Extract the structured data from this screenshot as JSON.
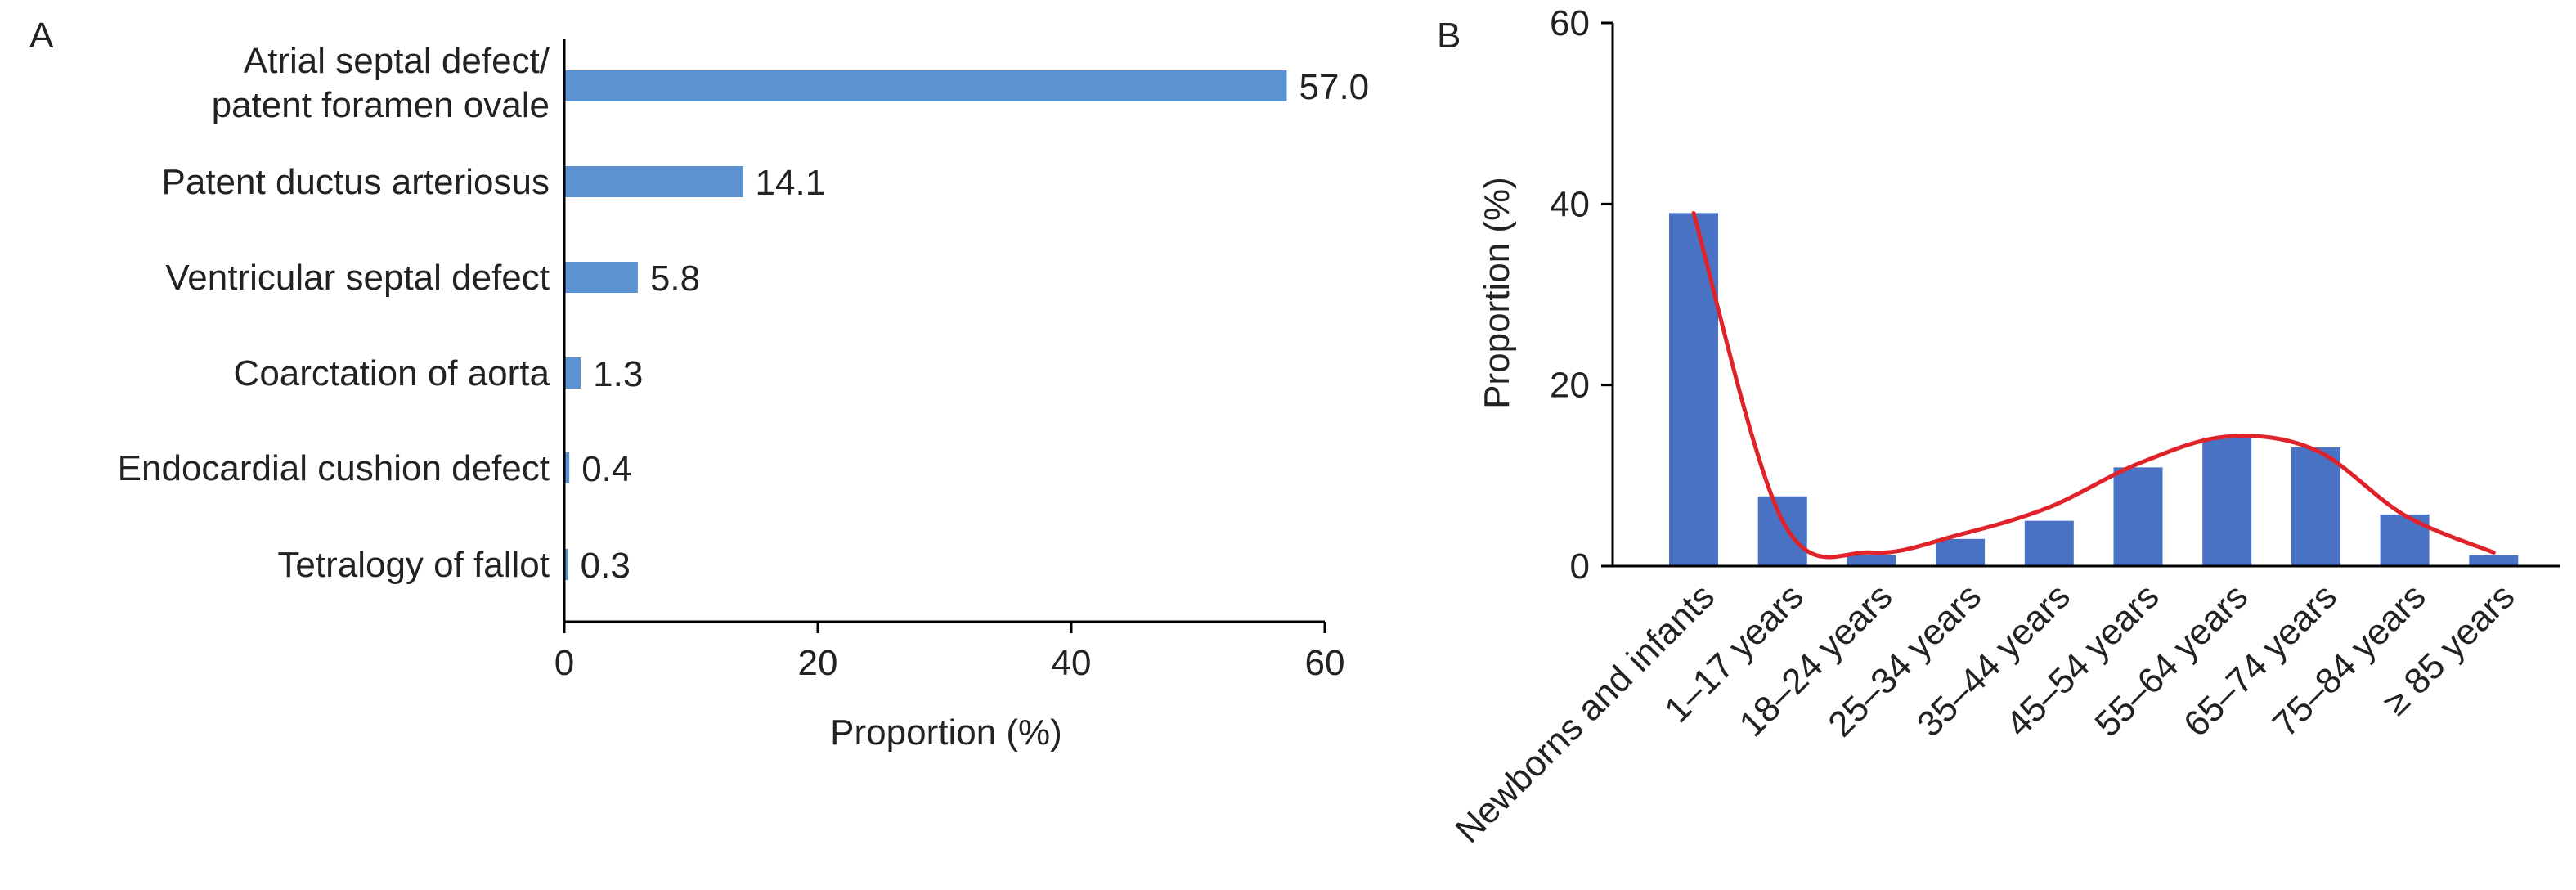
{
  "chart_data": [
    {
      "type": "bar",
      "orientation": "horizontal",
      "panel_label": "A",
      "categories": [
        [
          "Atrial septal defect/",
          "patent foramen ovale"
        ],
        [
          "Patent ductus arteriosus"
        ],
        [
          "Ventricular septal defect"
        ],
        [
          "Coarctation of aorta"
        ],
        [
          "Endocardial cushion defect"
        ],
        [
          "Tetralogy of fallot"
        ]
      ],
      "values": [
        57.0,
        14.1,
        5.8,
        1.3,
        0.4,
        0.3
      ],
      "value_labels": [
        "57.0",
        "14.1",
        "5.8",
        "1.3",
        "0.4",
        "0.3"
      ],
      "xlabel": "Proportion (%)",
      "xlim": [
        0,
        60
      ],
      "xticks": [
        0,
        20,
        40,
        60
      ],
      "grid": false,
      "colors": {
        "bar": "#5b93d2"
      }
    },
    {
      "type": "bar",
      "overlay": "smoothed line",
      "panel_label": "B",
      "categories": [
        "Newborns and infants",
        "1–17 years",
        "18–24 years",
        "25–34 years",
        "35–44 years",
        "45–54 years",
        "55–64 years",
        "65–74 years",
        "75–84 years",
        "≥ 85 years"
      ],
      "values": [
        39.0,
        7.7,
        1.2,
        3.0,
        5.0,
        10.9,
        14.2,
        13.1,
        5.7,
        1.2
      ],
      "line_values": [
        39.0,
        5.0,
        1.5,
        3.5,
        6.5,
        11.3,
        14.3,
        12.8,
        5.6,
        1.5
      ],
      "ylabel": "Proportion (%)",
      "ylim": [
        0,
        60
      ],
      "yticks": [
        0,
        20,
        40,
        60
      ],
      "grid": false,
      "colors": {
        "bar": "#4a72c4",
        "line": "#e0232a"
      }
    }
  ]
}
